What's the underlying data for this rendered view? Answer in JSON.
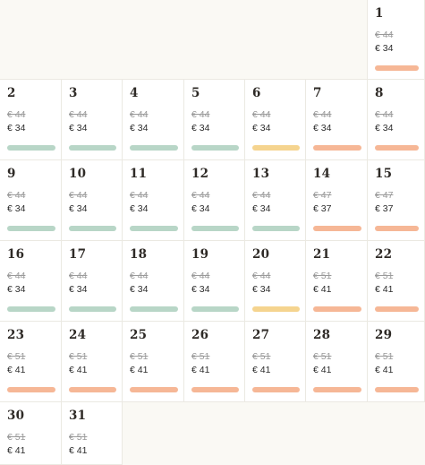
{
  "colors": {
    "green": "#b8d6c7",
    "yellow": "#f5d48f",
    "orange": "#f6b796"
  },
  "month": {
    "leading_blank_cells": 6,
    "days": [
      {
        "day": "1",
        "old_price": "€ 44",
        "price": "€ 34",
        "status": "orange"
      },
      {
        "day": "2",
        "old_price": "€ 44",
        "price": "€ 34",
        "status": "green"
      },
      {
        "day": "3",
        "old_price": "€ 44",
        "price": "€ 34",
        "status": "green"
      },
      {
        "day": "4",
        "old_price": "€ 44",
        "price": "€ 34",
        "status": "green"
      },
      {
        "day": "5",
        "old_price": "€ 44",
        "price": "€ 34",
        "status": "green"
      },
      {
        "day": "6",
        "old_price": "€ 44",
        "price": "€ 34",
        "status": "yellow"
      },
      {
        "day": "7",
        "old_price": "€ 44",
        "price": "€ 34",
        "status": "orange"
      },
      {
        "day": "8",
        "old_price": "€ 44",
        "price": "€ 34",
        "status": "orange"
      },
      {
        "day": "9",
        "old_price": "€ 44",
        "price": "€ 34",
        "status": "green"
      },
      {
        "day": "10",
        "old_price": "€ 44",
        "price": "€ 34",
        "status": "green"
      },
      {
        "day": "11",
        "old_price": "€ 44",
        "price": "€ 34",
        "status": "green"
      },
      {
        "day": "12",
        "old_price": "€ 44",
        "price": "€ 34",
        "status": "green"
      },
      {
        "day": "13",
        "old_price": "€ 44",
        "price": "€ 34",
        "status": "green"
      },
      {
        "day": "14",
        "old_price": "€ 47",
        "price": "€ 37",
        "status": "orange"
      },
      {
        "day": "15",
        "old_price": "€ 47",
        "price": "€ 37",
        "status": "orange"
      },
      {
        "day": "16",
        "old_price": "€ 44",
        "price": "€ 34",
        "status": "green"
      },
      {
        "day": "17",
        "old_price": "€ 44",
        "price": "€ 34",
        "status": "green"
      },
      {
        "day": "18",
        "old_price": "€ 44",
        "price": "€ 34",
        "status": "green"
      },
      {
        "day": "19",
        "old_price": "€ 44",
        "price": "€ 34",
        "status": "green"
      },
      {
        "day": "20",
        "old_price": "€ 44",
        "price": "€ 34",
        "status": "yellow"
      },
      {
        "day": "21",
        "old_price": "€ 51",
        "price": "€ 41",
        "status": "orange"
      },
      {
        "day": "22",
        "old_price": "€ 51",
        "price": "€ 41",
        "status": "orange"
      },
      {
        "day": "23",
        "old_price": "€ 51",
        "price": "€ 41",
        "status": "orange"
      },
      {
        "day": "24",
        "old_price": "€ 51",
        "price": "€ 41",
        "status": "orange"
      },
      {
        "day": "25",
        "old_price": "€ 51",
        "price": "€ 41",
        "status": "orange"
      },
      {
        "day": "26",
        "old_price": "€ 51",
        "price": "€ 41",
        "status": "orange"
      },
      {
        "day": "27",
        "old_price": "€ 51",
        "price": "€ 41",
        "status": "orange"
      },
      {
        "day": "28",
        "old_price": "€ 51",
        "price": "€ 41",
        "status": "orange"
      },
      {
        "day": "29",
        "old_price": "€ 51",
        "price": "€ 41",
        "status": "orange"
      },
      {
        "day": "30",
        "old_price": "€ 51",
        "price": "€ 41",
        "status": "none"
      },
      {
        "day": "31",
        "old_price": "€ 51",
        "price": "€ 41",
        "status": "none"
      }
    ]
  }
}
